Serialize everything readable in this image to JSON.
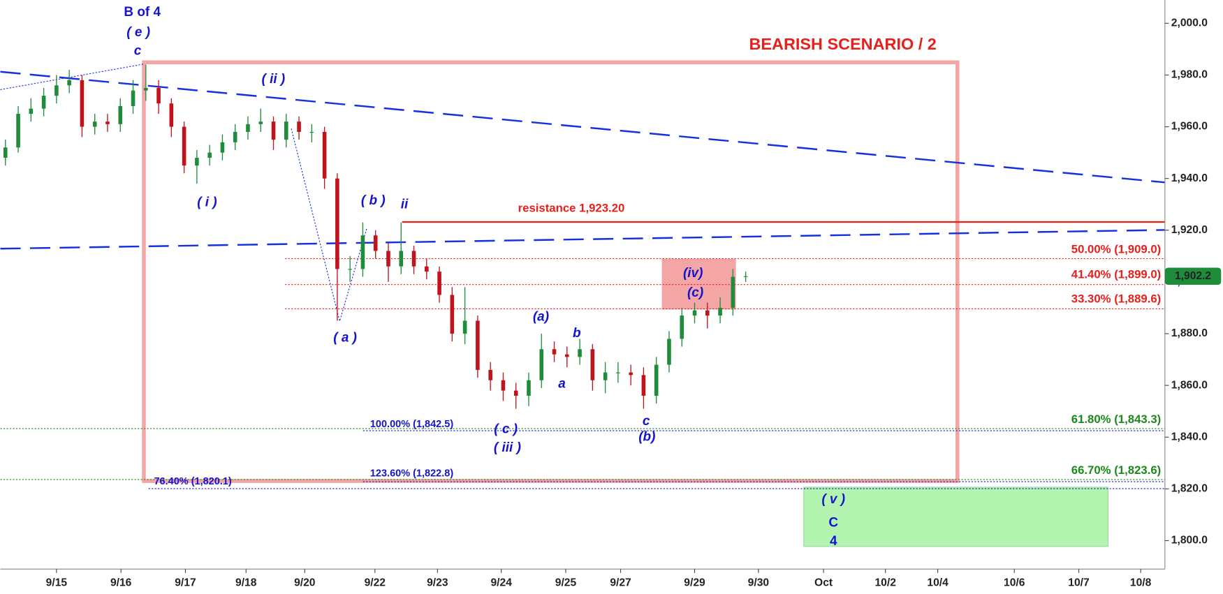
{
  "chart_data": {
    "type": "candlestick",
    "title": "BEARISH SCENARIO / 2",
    "x": [
      -0.8,
      -0.6,
      -0.4,
      -0.2,
      0.0,
      0.2,
      0.4,
      0.6,
      0.8,
      1.0,
      1.2,
      1.4,
      1.6,
      1.8,
      2.0,
      2.2,
      2.4,
      2.6,
      2.8,
      3.0,
      3.2,
      3.4,
      3.6,
      3.8,
      4.0,
      4.2,
      4.4,
      4.6,
      4.8,
      5.0,
      5.2,
      5.4,
      5.6,
      5.8,
      6.0,
      6.2,
      6.4,
      6.6,
      6.8,
      7.0,
      7.2,
      7.4,
      7.6,
      7.8,
      8.0,
      8.2,
      8.4,
      8.6,
      8.8,
      9.0,
      9.2,
      9.4,
      9.6,
      9.8,
      10.0,
      10.2,
      10.4,
      10.6,
      10.8
    ],
    "open": [
      1948,
      1952,
      1965,
      1967,
      1972,
      1976,
      1978,
      1960,
      1962,
      1961,
      1968,
      1974,
      1975,
      1969,
      1960,
      1945,
      1948,
      1950,
      1954,
      1958,
      1961,
      1962,
      1955,
      1962,
      1958,
      1958,
      1940,
      1905,
      1905,
      1918,
      1912,
      1906,
      1912,
      1906,
      1904,
      1895,
      1880,
      1885,
      1866,
      1862,
      1858,
      1856,
      1862,
      1874,
      1872,
      1871,
      1874,
      1862,
      1865,
      1865,
      1864,
      1856,
      1868,
      1878,
      1887,
      1889,
      1887,
      1890,
      1902
    ],
    "high": [
      1955,
      1968,
      1971,
      1975,
      1980,
      1982,
      1980,
      1965,
      1965,
      1971,
      1978,
      1984,
      1978,
      1971,
      1962,
      1951,
      1953,
      1957,
      1961,
      1964,
      1967,
      1964,
      1965,
      1964,
      1961,
      1960,
      1942,
      1910,
      1923,
      1920,
      1915,
      1923,
      1914,
      1909,
      1906,
      1898,
      1898,
      1887,
      1869,
      1865,
      1861,
      1865,
      1880,
      1877,
      1875,
      1878,
      1876,
      1869,
      1869,
      1868,
      1867,
      1871,
      1881,
      1890,
      1892,
      1892,
      1894,
      1905,
      1904
    ],
    "low": [
      1945,
      1950,
      1962,
      1964,
      1969,
      1973,
      1956,
      1957,
      1958,
      1958,
      1965,
      1970,
      1965,
      1956,
      1942,
      1938,
      1945,
      1947,
      1951,
      1955,
      1958,
      1951,
      1952,
      1955,
      1954,
      1936,
      1885,
      1900,
      1902,
      1909,
      1900,
      1903,
      1903,
      1901,
      1892,
      1877,
      1876,
      1863,
      1858,
      1854,
      1851,
      1852,
      1859,
      1869,
      1867,
      1868,
      1858,
      1857,
      1861,
      1860,
      1851,
      1853,
      1865,
      1875,
      1884,
      1882,
      1884,
      1887,
      1900
    ],
    "close": [
      1952,
      1965,
      1967,
      1972,
      1976,
      1978,
      1960,
      1962,
      1961,
      1968,
      1974,
      1975,
      1969,
      1960,
      1945,
      1948,
      1950,
      1954,
      1958,
      1961,
      1962,
      1955,
      1962,
      1958,
      1958,
      1940,
      1905,
      1905,
      1918,
      1912,
      1906,
      1912,
      1906,
      1904,
      1895,
      1880,
      1885,
      1866,
      1862,
      1858,
      1856,
      1862,
      1874,
      1872,
      1871,
      1874,
      1862,
      1865,
      1865,
      1864,
      1856,
      1868,
      1878,
      1887,
      1889,
      1887,
      1890,
      1902,
      1902.2
    ],
    "up_color": "#1e8c3a",
    "down_color": "#c0141c",
    "xlim": [
      -0.88,
      17.37
    ],
    "xticks": [
      {
        "value": 0,
        "label": "9/15"
      },
      {
        "value": 1.01,
        "label": "9/16"
      },
      {
        "value": 2.02,
        "label": "9/17"
      },
      {
        "value": 2.97,
        "label": "9/18"
      },
      {
        "value": 3.89,
        "label": "9/20"
      },
      {
        "value": 4.99,
        "label": "9/22"
      },
      {
        "value": 5.97,
        "label": "9/23"
      },
      {
        "value": 6.97,
        "label": "9/24"
      },
      {
        "value": 7.98,
        "label": "9/25"
      },
      {
        "value": 8.84,
        "label": "9/27"
      },
      {
        "value": 10.0,
        "label": "9/29"
      },
      {
        "value": 11.0,
        "label": "9/30"
      },
      {
        "value": 12.02,
        "label": "Oct"
      },
      {
        "value": 12.99,
        "label": "10/2"
      },
      {
        "value": 13.81,
        "label": "10/4"
      },
      {
        "value": 15.01,
        "label": "10/6"
      },
      {
        "value": 16.02,
        "label": "10/7"
      },
      {
        "value": 16.99,
        "label": "10/8"
      }
    ],
    "ylim": [
      1789,
      2009
    ],
    "yticks": [
      {
        "value": 1800,
        "label": "1,800.0"
      },
      {
        "value": 1820,
        "label": "1,820.0"
      },
      {
        "value": 1840,
        "label": "1,840.0"
      },
      {
        "value": 1860,
        "label": "1,860.0"
      },
      {
        "value": 1880,
        "label": "1,880.0"
      },
      {
        "value": 1900,
        "label": "1,900.0"
      },
      {
        "value": 1920,
        "label": "1,920.0"
      },
      {
        "value": 1940,
        "label": "1,940.0"
      },
      {
        "value": 1960,
        "label": "1,960.0"
      },
      {
        "value": 1980,
        "label": "1,980.0"
      },
      {
        "value": 2000,
        "label": "2,000.0"
      }
    ],
    "levels": [
      {
        "label": "50.00% (1,909.0)",
        "value": 1909,
        "color": "#e8201c"
      },
      {
        "label": "41.40% (1,899.0)",
        "value": 1899,
        "color": "#e8201c"
      },
      {
        "label": "33.30% (1,889.6)",
        "value": 1889.6,
        "color": "#e8201c"
      },
      {
        "label": "61.80% (1,843.3)",
        "value": 1843.3,
        "color": "#1a8a1a"
      },
      {
        "label": "66.70% (1,823.6)",
        "value": 1823.6,
        "color": "#1a8a1a"
      },
      {
        "label": "100.00% (1,842.5)",
        "value": 1842.5,
        "color": "#1414d0"
      },
      {
        "label": "123.60% (1,822.8)",
        "value": 1822.8,
        "color": "#1414d0"
      },
      {
        "label": "76.40% (1,820.1)",
        "value": 1820.1,
        "color": "#1414d0"
      }
    ],
    "resistance": {
      "label": "resistance 1,923.20",
      "value": 1923.2,
      "color": "#e8201c"
    },
    "last_price": {
      "label": "1,902.2",
      "value": 1902.2,
      "color": "#1e8c3a"
    },
    "annotations": [
      "B of 4",
      "( e )",
      "c",
      "( ii )",
      "( i )",
      "( b )",
      "ii",
      "( a )",
      "(a)",
      "b",
      "a",
      "( c )",
      "( iii )",
      "c",
      "(b)",
      "(iv)",
      "(c)",
      "( v )",
      "C",
      "4"
    ]
  }
}
